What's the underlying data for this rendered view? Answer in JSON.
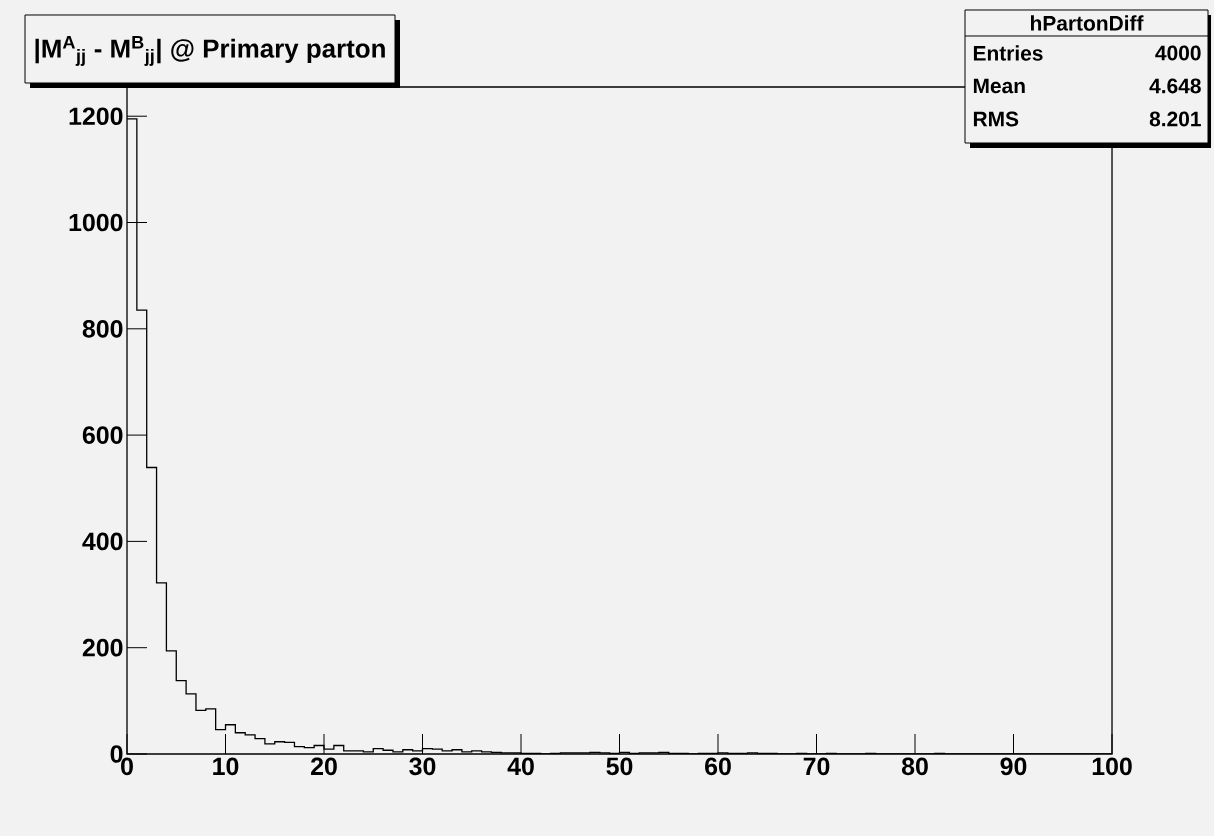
{
  "chart_data": {
    "type": "histogram",
    "title": "|M$^{A}$$_{jj}$ - M$^{B}$$_{jj}$| @ Primary parton",
    "bins": [
      0,
      1,
      2,
      3,
      4,
      5,
      6,
      7,
      8,
      9,
      10,
      11,
      12,
      13,
      14,
      15,
      16,
      17,
      18,
      19,
      20,
      21,
      22,
      23,
      24,
      25,
      26,
      27,
      28,
      29,
      30,
      31,
      32,
      33,
      34,
      35,
      36,
      37,
      38,
      39,
      40,
      41,
      42,
      43,
      44,
      45,
      46,
      47,
      48,
      49,
      50,
      51,
      52,
      53,
      54,
      55,
      56,
      57,
      58,
      59,
      60,
      61,
      62,
      63,
      64,
      65,
      66,
      67,
      68,
      69,
      70,
      71,
      72,
      73,
      74,
      75,
      76,
      77,
      78,
      79,
      80,
      81,
      82,
      83,
      84,
      85,
      86,
      87,
      88,
      89,
      90,
      91,
      92,
      93,
      94,
      95,
      96,
      97,
      98,
      99,
      100
    ],
    "values": [
      1195,
      835,
      539,
      322,
      194,
      138,
      113,
      82,
      85,
      46,
      55,
      40,
      36,
      29,
      19,
      23,
      22,
      14,
      12,
      16,
      9,
      16,
      6,
      6,
      4,
      10,
      7,
      4,
      8,
      6,
      10,
      9,
      6,
      8,
      4,
      6,
      4,
      3,
      2,
      2,
      1,
      1,
      0,
      1,
      2,
      2,
      2,
      3,
      2,
      1,
      3,
      1,
      2,
      2,
      3,
      1,
      1,
      0,
      1,
      1,
      2,
      1,
      1,
      2,
      1,
      1,
      0,
      0,
      1,
      0,
      0,
      1,
      0,
      0,
      0,
      1,
      0,
      0,
      0,
      0,
      0,
      0,
      1,
      0,
      0,
      0,
      0,
      0,
      0,
      0,
      0,
      0,
      0,
      0,
      0,
      0,
      0,
      0,
      0,
      0
    ],
    "color": "#000000",
    "xlim": [
      0,
      100
    ],
    "xticks": [
      0,
      10,
      20,
      30,
      40,
      50,
      60,
      70,
      80,
      90,
      100
    ],
    "ylim": [
      0,
      1255
    ],
    "yticks": [
      0,
      200,
      400,
      600,
      800,
      1000,
      1200
    ],
    "annotations": [
      "hPartonDiff",
      "Entries",
      "4000",
      "Mean",
      "4.648",
      "RMS",
      "8.201"
    ]
  }
}
